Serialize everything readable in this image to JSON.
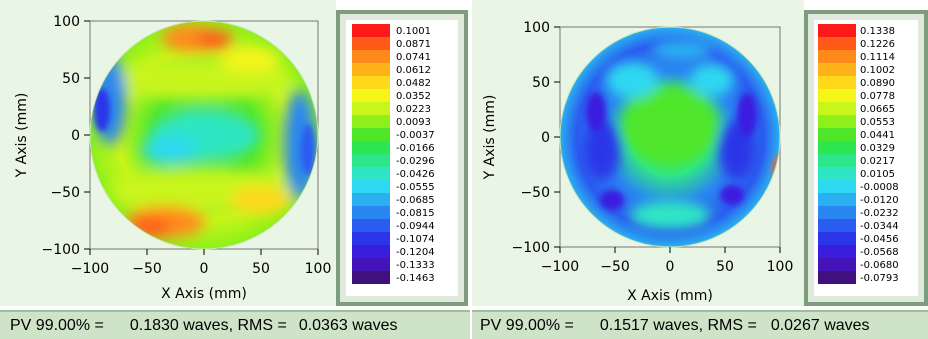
{
  "left": {
    "x_axis_label": "X Axis  (mm)",
    "y_axis_label": "Y Axis  (mm)",
    "x_ticks": [
      "−100",
      "−50",
      "0",
      "50",
      "100"
    ],
    "y_ticks": [
      "100",
      "50",
      "0",
      "−50",
      "−100"
    ],
    "legend_values": [
      "0.1001",
      "0.0871",
      "0.0741",
      "0.0612",
      "0.0482",
      "0.0352",
      "0.0223",
      "0.0093",
      "-0.0037",
      "-0.0166",
      "-0.0296",
      "-0.0426",
      "-0.0555",
      "-0.0685",
      "-0.0815",
      "-0.0944",
      "-0.1074",
      "-0.1204",
      "-0.1333",
      "-0.1463"
    ],
    "status": {
      "pv_label": "PV 99.00% =",
      "pv_value": "0.1830 waves, RMS =",
      "rms_value": "0.0363 waves"
    }
  },
  "right": {
    "x_axis_label": "X Axis  (mm)",
    "y_axis_label": "Y Axis  (mm)",
    "x_ticks": [
      "−100",
      "−50",
      "0",
      "50",
      "100"
    ],
    "y_ticks": [
      "100",
      "50",
      "0",
      "−50",
      "−100"
    ],
    "legend_values": [
      "0.1338",
      "0.1226",
      "0.1114",
      "0.1002",
      "0.0890",
      "0.0778",
      "0.0665",
      "0.0553",
      "0.0441",
      "0.0329",
      "0.0217",
      "0.0105",
      "-0.0008",
      "-0.0120",
      "-0.0232",
      "-0.0344",
      "-0.0456",
      "-0.0568",
      "-0.0680",
      "-0.0793"
    ],
    "status": {
      "pv_label": "PV 99.00% =",
      "pv_value": "0.1517 waves, RMS =",
      "rms_value": "0.0267 waves"
    }
  },
  "legend_colors": [
    "#ff1a1a",
    "#ff5a1a",
    "#ff8a1a",
    "#ffb21a",
    "#ffd81a",
    "#f5f51a",
    "#c8f51a",
    "#8ef01a",
    "#4fe62a",
    "#2ee650",
    "#2ee68a",
    "#2ee6c4",
    "#2ed8f0",
    "#2ab0f0",
    "#2a86f0",
    "#2a5cf0",
    "#2a36e8",
    "#3a1ee0",
    "#4414b8",
    "#40107e"
  ],
  "colormap": {
    "left": {
      "center": "#3fe0a0",
      "band_top": "#ffb21a",
      "band_bottom": "#ff8a1a",
      "ring": "#c8f51a",
      "edge": "#2a5cf0"
    },
    "right": {
      "center": "#4fe62a",
      "ring": "#2ab0f0",
      "edge": "#2a36e8",
      "spots": "#3a1ee0"
    }
  }
}
